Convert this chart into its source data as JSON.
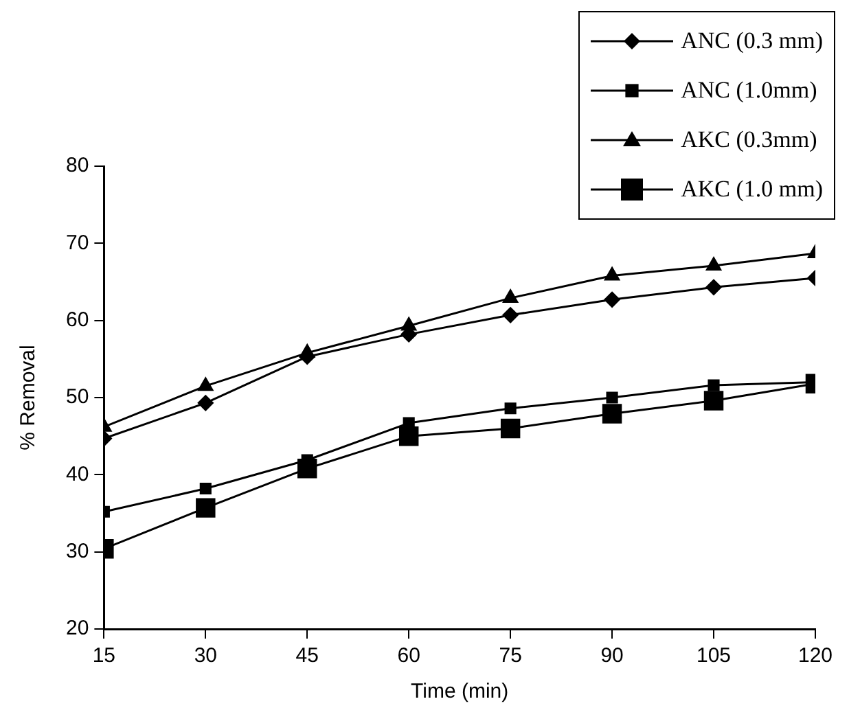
{
  "chart_data": {
    "type": "line",
    "xlabel": "Time (min)",
    "ylabel": "% Removal",
    "x": [
      15,
      30,
      45,
      60,
      75,
      90,
      105,
      120
    ],
    "xlim": [
      15,
      120
    ],
    "xticks": [
      15,
      30,
      45,
      60,
      75,
      90,
      105,
      120
    ],
    "ylim": [
      20,
      80
    ],
    "yticks": [
      20,
      30,
      40,
      50,
      60,
      70,
      80
    ],
    "grid": false,
    "legend": "top right",
    "line_style": "solid",
    "series": [
      {
        "name": "ANC (0.3 mm)",
        "color": "#000000",
        "marker": "diamond",
        "values": [
          44.7,
          49.3,
          55.3,
          58.2,
          60.7,
          62.7,
          64.3,
          65.5
        ]
      },
      {
        "name": "ANC (1.0mm)",
        "color": "#000000",
        "marker": "square",
        "values": [
          35.2,
          38.2,
          41.9,
          46.7,
          48.6,
          50.0,
          51.6,
          52.0
        ]
      },
      {
        "name": "AKC (0.3mm)",
        "color": "#000000",
        "marker": "triangle",
        "values": [
          46.2,
          51.5,
          55.8,
          59.3,
          62.9,
          65.8,
          67.1,
          68.7
        ]
      },
      {
        "name": "AKC (1.0 mm)",
        "color": "#000000",
        "marker": "square",
        "values": [
          30.4,
          35.7,
          40.8,
          45.0,
          46.0,
          47.9,
          49.6,
          51.8
        ]
      }
    ]
  }
}
